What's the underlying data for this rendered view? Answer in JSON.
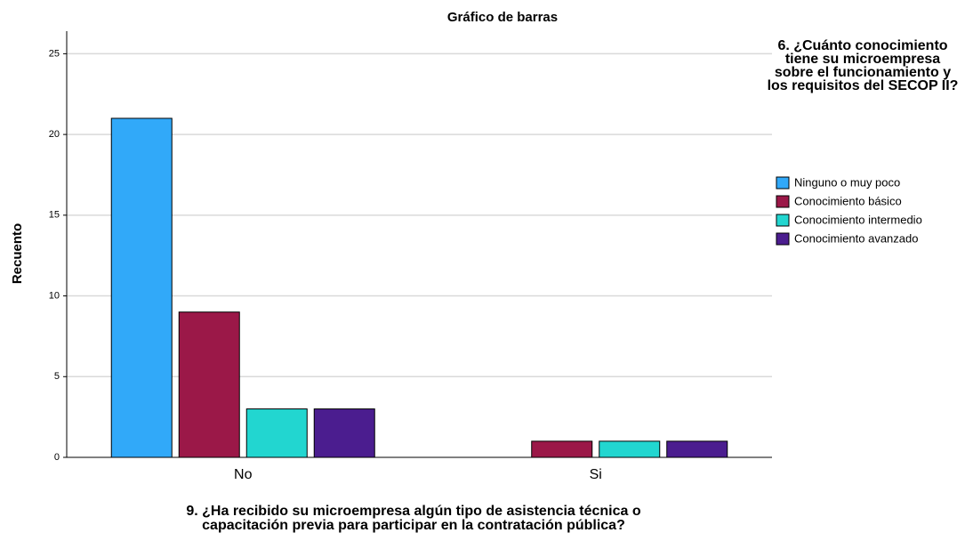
{
  "chart_data": {
    "type": "bar",
    "title": "Gráfico de barras",
    "y_label": "Recuento",
    "x_label": "9. ¿Ha recibido su microempresa algún tipo de asistencia técnica o capacitación previa para participar en la contratación pública?",
    "legend_title": "6. ¿Cuánto conocimiento tiene su microempresa sobre el funcionamiento y los requisitos del SECOP II?",
    "categories": [
      "No",
      "Si"
    ],
    "series": [
      {
        "name": "Ninguno o muy poco",
        "color": "#31a9f9",
        "values": [
          21,
          0
        ]
      },
      {
        "name": "Conocimiento básico",
        "color": "#9b1848",
        "values": [
          9,
          1
        ]
      },
      {
        "name": "Conocimiento intermedio",
        "color": "#22d6d0",
        "values": [
          3,
          1
        ]
      },
      {
        "name": "Conocimiento avanzado",
        "color": "#4b1d8f",
        "values": [
          3,
          1
        ]
      }
    ],
    "ylim": [
      0,
      26.4
    ],
    "yticks": [
      0,
      5,
      10,
      15,
      20,
      25
    ],
    "grid": true,
    "legend": "right"
  }
}
